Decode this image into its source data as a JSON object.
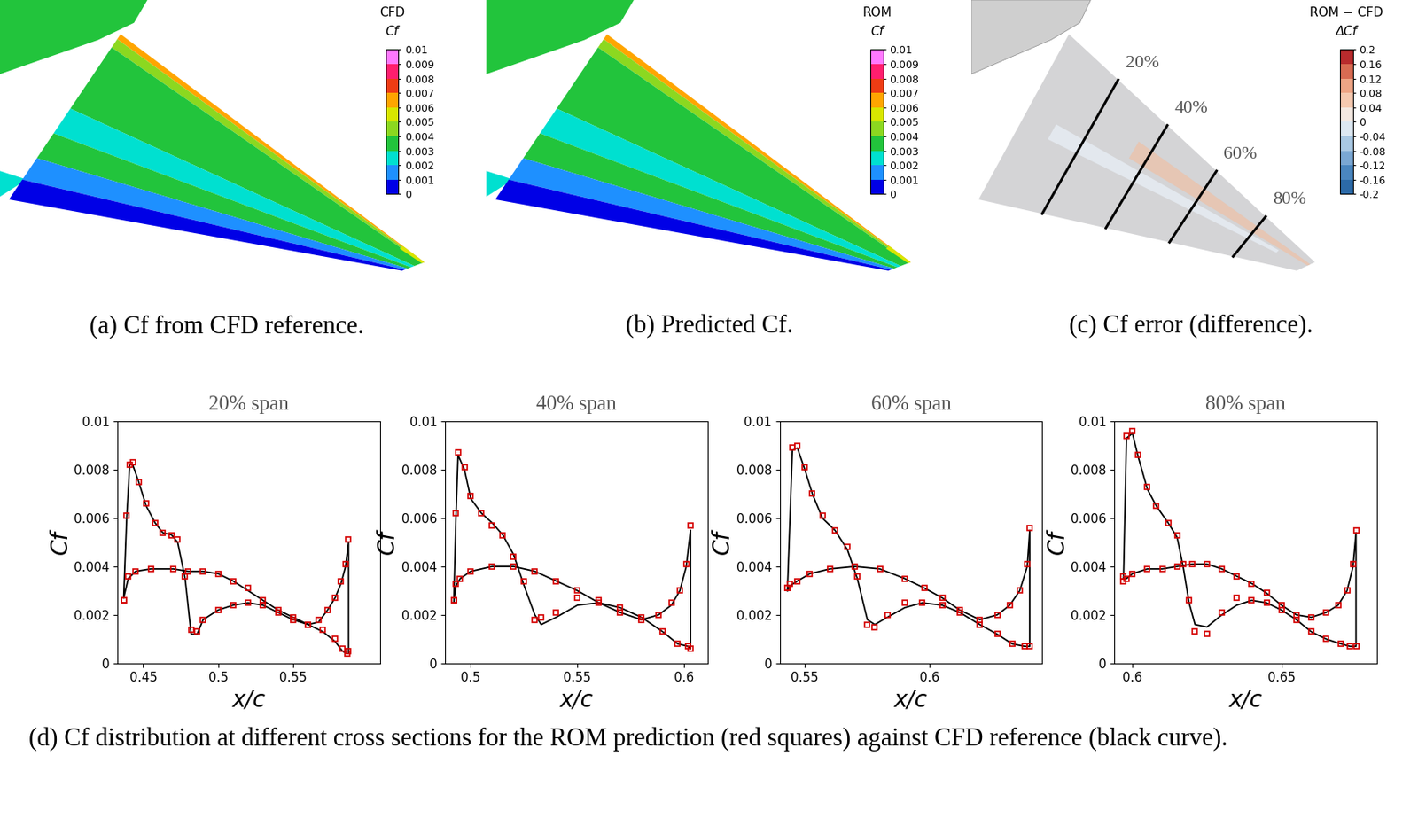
{
  "figure": {
    "top_panels": [
      {
        "caption": "(a) Cf from CFD reference.",
        "colorbar": {
          "title": [
            "CFD",
            "Cf"
          ],
          "ticks": [
            0,
            0.001,
            0.002,
            0.003,
            0.004,
            0.005,
            0.006,
            0.007,
            0.008,
            0.009,
            0.01
          ],
          "colors": [
            "#0000e6",
            "#1e90ff",
            "#00e0d0",
            "#22c43c",
            "#8cd820",
            "#d8e600",
            "#ffa500",
            "#ee3c14",
            "#ff1e6e",
            "#ff78ff"
          ]
        }
      },
      {
        "caption": "(b) Predicted Cf.",
        "colorbar": {
          "title": [
            "ROM",
            "Cf"
          ],
          "ticks": [
            0,
            0.001,
            0.002,
            0.003,
            0.004,
            0.005,
            0.006,
            0.007,
            0.008,
            0.009,
            0.01
          ],
          "colors": [
            "#0000e6",
            "#1e90ff",
            "#00e0d0",
            "#22c43c",
            "#8cd820",
            "#d8e600",
            "#ffa500",
            "#ee3c14",
            "#ff1e6e",
            "#ff78ff"
          ]
        }
      },
      {
        "caption": "(c) Cf error (difference).",
        "colorbar": {
          "title": [
            "ROM − CFD",
            "ΔCf"
          ],
          "ticks": [
            -0.2,
            -0.16,
            -0.12,
            -0.08,
            -0.04,
            0,
            0.04,
            0.08,
            0.12,
            0.16,
            0.2
          ],
          "colors": [
            "#2c6aa8",
            "#4a86bf",
            "#7aa7d3",
            "#a9c8e3",
            "#dde8f2",
            "#f4e9e2",
            "#f5c9b0",
            "#eea585",
            "#d86b52",
            "#b82b2d"
          ]
        },
        "span_labels": [
          "20%",
          "40%",
          "60%",
          "80%"
        ]
      }
    ],
    "caption_d": "(d) Cf distribution at different cross sections for the ROM prediction (red squares) against CFD reference (black curve)."
  },
  "chart_data": [
    {
      "type": "line",
      "title": "20% span",
      "x_label": "x/c",
      "y_label": "Cf",
      "xlim": [
        0.433,
        0.608
      ],
      "ylim": [
        0,
        0.01
      ],
      "xticks": [
        0.45,
        0.5,
        0.55
      ],
      "yticks": [
        0,
        0.002,
        0.004,
        0.006,
        0.008,
        0.01
      ],
      "series": [
        {
          "color": "#000000",
          "line_style": "solid",
          "marker": "none",
          "x": [
            0.437,
            0.439,
            0.441,
            0.443,
            0.447,
            0.452,
            0.458,
            0.463,
            0.469,
            0.473,
            0.478,
            0.482,
            0.486,
            0.49,
            0.5,
            0.51,
            0.52,
            0.53,
            0.54,
            0.55,
            0.56,
            0.57,
            0.578,
            0.583,
            0.586,
            0.587,
            0.587,
            0.585,
            0.582,
            0.578,
            0.573,
            0.567,
            0.56,
            0.55,
            0.54,
            0.53,
            0.52,
            0.51,
            0.5,
            0.49,
            0.48,
            0.47,
            0.455,
            0.445,
            0.44,
            0.437
          ],
          "values": [
            0.0027,
            0.006,
            0.0082,
            0.0082,
            0.0075,
            0.0065,
            0.0058,
            0.0054,
            0.0053,
            0.005,
            0.0035,
            0.0012,
            0.0012,
            0.0018,
            0.0022,
            0.0024,
            0.0025,
            0.0024,
            0.0021,
            0.0018,
            0.0016,
            0.0013,
            0.0009,
            0.0005,
            0.0004,
            0.0004,
            0.005,
            0.004,
            0.0033,
            0.0027,
            0.0022,
            0.0017,
            0.0016,
            0.0019,
            0.0022,
            0.0026,
            0.003,
            0.0034,
            0.0037,
            0.0038,
            0.0038,
            0.0039,
            0.0039,
            0.0038,
            0.0035,
            0.0027
          ]
        },
        {
          "color": "#d40000",
          "line_style": "none",
          "marker": "square",
          "x": [
            0.437,
            0.439,
            0.441,
            0.443,
            0.447,
            0.452,
            0.458,
            0.463,
            0.469,
            0.473,
            0.478,
            0.482,
            0.486,
            0.49,
            0.5,
            0.51,
            0.52,
            0.53,
            0.54,
            0.55,
            0.56,
            0.57,
            0.578,
            0.583,
            0.586,
            0.587,
            0.587,
            0.585,
            0.582,
            0.578,
            0.573,
            0.567,
            0.56,
            0.55,
            0.54,
            0.53,
            0.52,
            0.51,
            0.5,
            0.49,
            0.48,
            0.47,
            0.455,
            0.445,
            0.44,
            0.437
          ],
          "values": [
            0.0026,
            0.0061,
            0.0082,
            0.0083,
            0.0075,
            0.0066,
            0.0058,
            0.0054,
            0.0053,
            0.0051,
            0.0036,
            0.0014,
            0.0013,
            0.0018,
            0.0022,
            0.0024,
            0.0025,
            0.0024,
            0.0021,
            0.0018,
            0.0016,
            0.0014,
            0.001,
            0.0006,
            0.0004,
            0.0005,
            0.0051,
            0.0041,
            0.0034,
            0.0027,
            0.0022,
            0.0018,
            0.0016,
            0.0019,
            0.0022,
            0.0026,
            0.0031,
            0.0034,
            0.0037,
            0.0038,
            0.0038,
            0.0039,
            0.0039,
            0.0038,
            0.0036,
            0.0026
          ]
        }
      ]
    },
    {
      "type": "line",
      "title": "40% span",
      "x_label": "x/c",
      "y_label": "Cf",
      "xlim": [
        0.488,
        0.611
      ],
      "ylim": [
        0,
        0.01
      ],
      "xticks": [
        0.5,
        0.55,
        0.6
      ],
      "yticks": [
        0,
        0.002,
        0.004,
        0.006,
        0.008,
        0.01
      ],
      "series": [
        {
          "color": "#000000",
          "line_style": "solid",
          "marker": "none",
          "x": [
            0.492,
            0.493,
            0.494,
            0.497,
            0.5,
            0.505,
            0.51,
            0.515,
            0.52,
            0.525,
            0.53,
            0.533,
            0.54,
            0.55,
            0.56,
            0.57,
            0.58,
            0.59,
            0.597,
            0.602,
            0.603,
            0.603,
            0.601,
            0.598,
            0.594,
            0.588,
            0.58,
            0.57,
            0.56,
            0.55,
            0.54,
            0.53,
            0.52,
            0.51,
            0.5,
            0.495,
            0.493,
            0.492
          ],
          "values": [
            0.0025,
            0.006,
            0.0086,
            0.008,
            0.0068,
            0.0062,
            0.0058,
            0.0053,
            0.0045,
            0.0032,
            0.002,
            0.0016,
            0.0019,
            0.0024,
            0.0025,
            0.0023,
            0.0019,
            0.0013,
            0.0008,
            0.0007,
            0.0006,
            0.0055,
            0.004,
            0.003,
            0.0024,
            0.002,
            0.0018,
            0.0021,
            0.0025,
            0.003,
            0.0034,
            0.0038,
            0.004,
            0.004,
            0.0038,
            0.0035,
            0.0032,
            0.0025
          ]
        },
        {
          "color": "#d40000",
          "line_style": "none",
          "marker": "square",
          "x": [
            0.492,
            0.493,
            0.494,
            0.497,
            0.5,
            0.505,
            0.51,
            0.515,
            0.52,
            0.525,
            0.53,
            0.533,
            0.54,
            0.55,
            0.56,
            0.57,
            0.58,
            0.59,
            0.597,
            0.602,
            0.603,
            0.603,
            0.601,
            0.598,
            0.594,
            0.588,
            0.58,
            0.57,
            0.56,
            0.55,
            0.54,
            0.53,
            0.52,
            0.51,
            0.5,
            0.495,
            0.493,
            0.492
          ],
          "values": [
            0.0026,
            0.0062,
            0.0087,
            0.0081,
            0.0069,
            0.0062,
            0.0057,
            0.0053,
            0.0044,
            0.0034,
            0.0018,
            0.0019,
            0.0021,
            0.0027,
            0.0026,
            0.0023,
            0.0019,
            0.0013,
            0.0008,
            0.0007,
            0.0006,
            0.0057,
            0.0041,
            0.003,
            0.0025,
            0.002,
            0.0018,
            0.0021,
            0.0025,
            0.003,
            0.0034,
            0.0038,
            0.004,
            0.004,
            0.0038,
            0.0035,
            0.0033,
            0.0026
          ]
        }
      ]
    },
    {
      "type": "line",
      "title": "60% span",
      "x_label": "x/c",
      "y_label": "Cf",
      "xlim": [
        0.54,
        0.645
      ],
      "ylim": [
        0,
        0.01
      ],
      "xticks": [
        0.55,
        0.6
      ],
      "yticks": [
        0,
        0.002,
        0.004,
        0.006,
        0.008,
        0.01
      ],
      "series": [
        {
          "color": "#000000",
          "line_style": "solid",
          "marker": "none",
          "x": [
            0.543,
            0.545,
            0.547,
            0.55,
            0.553,
            0.557,
            0.562,
            0.567,
            0.571,
            0.575,
            0.578,
            0.583,
            0.59,
            0.597,
            0.605,
            0.612,
            0.62,
            0.627,
            0.633,
            0.638,
            0.64,
            0.64,
            0.639,
            0.636,
            0.632,
            0.627,
            0.62,
            0.612,
            0.605,
            0.598,
            0.59,
            0.58,
            0.57,
            0.56,
            0.552,
            0.547,
            0.544,
            0.543
          ],
          "values": [
            0.003,
            0.0088,
            0.0089,
            0.008,
            0.007,
            0.006,
            0.0055,
            0.0047,
            0.0035,
            0.0018,
            0.0016,
            0.0019,
            0.0023,
            0.0025,
            0.0024,
            0.0021,
            0.0016,
            0.0012,
            0.0008,
            0.0007,
            0.0007,
            0.0055,
            0.004,
            0.003,
            0.0024,
            0.002,
            0.0018,
            0.0022,
            0.0027,
            0.0031,
            0.0035,
            0.0039,
            0.004,
            0.0039,
            0.0037,
            0.0034,
            0.0032,
            0.003
          ]
        },
        {
          "color": "#d40000",
          "line_style": "none",
          "marker": "square",
          "x": [
            0.543,
            0.545,
            0.547,
            0.55,
            0.553,
            0.557,
            0.562,
            0.567,
            0.571,
            0.575,
            0.578,
            0.583,
            0.59,
            0.597,
            0.605,
            0.612,
            0.62,
            0.627,
            0.633,
            0.638,
            0.64,
            0.64,
            0.639,
            0.636,
            0.632,
            0.627,
            0.62,
            0.612,
            0.605,
            0.598,
            0.59,
            0.58,
            0.57,
            0.56,
            0.552,
            0.547,
            0.544,
            0.543
          ],
          "values": [
            0.0031,
            0.0089,
            0.009,
            0.0081,
            0.007,
            0.0061,
            0.0055,
            0.0048,
            0.0036,
            0.0016,
            0.0015,
            0.002,
            0.0025,
            0.0025,
            0.0024,
            0.0021,
            0.0016,
            0.0012,
            0.0008,
            0.0007,
            0.0007,
            0.0056,
            0.0041,
            0.003,
            0.0024,
            0.002,
            0.0018,
            0.0022,
            0.0027,
            0.0031,
            0.0035,
            0.0039,
            0.004,
            0.0039,
            0.0037,
            0.0034,
            0.0033,
            0.0031
          ]
        }
      ]
    },
    {
      "type": "line",
      "title": "80% span",
      "x_label": "x/c",
      "y_label": "Cf",
      "xlim": [
        0.594,
        0.682
      ],
      "ylim": [
        0,
        0.01
      ],
      "xticks": [
        0.6,
        0.65
      ],
      "yticks": [
        0,
        0.002,
        0.004,
        0.006,
        0.008,
        0.01
      ],
      "series": [
        {
          "color": "#000000",
          "line_style": "solid",
          "marker": "none",
          "x": [
            0.597,
            0.598,
            0.6,
            0.602,
            0.605,
            0.608,
            0.612,
            0.615,
            0.617,
            0.619,
            0.621,
            0.625,
            0.63,
            0.635,
            0.64,
            0.645,
            0.65,
            0.655,
            0.66,
            0.665,
            0.67,
            0.673,
            0.675,
            0.675,
            0.674,
            0.672,
            0.669,
            0.665,
            0.66,
            0.655,
            0.65,
            0.645,
            0.64,
            0.635,
            0.63,
            0.625,
            0.62,
            0.615,
            0.61,
            0.605,
            0.6,
            0.598,
            0.597
          ],
          "values": [
            0.0035,
            0.0093,
            0.0095,
            0.0085,
            0.0072,
            0.0065,
            0.0058,
            0.0052,
            0.004,
            0.0025,
            0.0016,
            0.0015,
            0.002,
            0.0024,
            0.0026,
            0.0025,
            0.0022,
            0.0018,
            0.0013,
            0.001,
            0.0008,
            0.0007,
            0.0007,
            0.0054,
            0.004,
            0.003,
            0.0024,
            0.0021,
            0.0019,
            0.002,
            0.0024,
            0.0029,
            0.0033,
            0.0036,
            0.0039,
            0.0041,
            0.0041,
            0.004,
            0.0039,
            0.0039,
            0.0037,
            0.0035,
            0.0035
          ]
        },
        {
          "color": "#d40000",
          "line_style": "none",
          "marker": "square",
          "x": [
            0.597,
            0.598,
            0.6,
            0.602,
            0.605,
            0.608,
            0.612,
            0.615,
            0.617,
            0.619,
            0.621,
            0.625,
            0.63,
            0.635,
            0.64,
            0.645,
            0.65,
            0.655,
            0.66,
            0.665,
            0.67,
            0.673,
            0.675,
            0.675,
            0.674,
            0.672,
            0.669,
            0.665,
            0.66,
            0.655,
            0.65,
            0.645,
            0.64,
            0.635,
            0.63,
            0.625,
            0.62,
            0.615,
            0.61,
            0.605,
            0.6,
            0.598,
            0.597
          ],
          "values": [
            0.0036,
            0.0094,
            0.0096,
            0.0086,
            0.0073,
            0.0065,
            0.0058,
            0.0053,
            0.0041,
            0.0026,
            0.0013,
            0.0012,
            0.0021,
            0.0027,
            0.0026,
            0.0025,
            0.0022,
            0.0018,
            0.0013,
            0.001,
            0.0008,
            0.0007,
            0.0007,
            0.0055,
            0.0041,
            0.003,
            0.0024,
            0.0021,
            0.0019,
            0.002,
            0.0024,
            0.0029,
            0.0033,
            0.0036,
            0.0039,
            0.0041,
            0.0041,
            0.004,
            0.0039,
            0.0039,
            0.0037,
            0.0035,
            0.0034
          ]
        }
      ]
    }
  ]
}
